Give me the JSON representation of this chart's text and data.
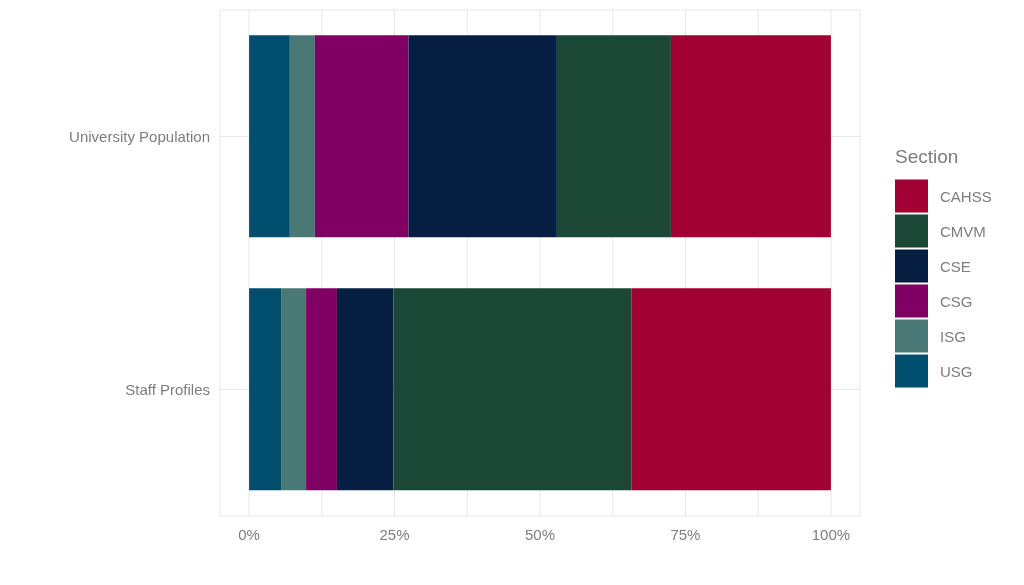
{
  "chart_data": {
    "type": "bar",
    "orientation": "horizontal",
    "stacked": true,
    "categories": [
      "University Population",
      "Staff Profiles"
    ],
    "series": [
      {
        "name": "USG",
        "color": "#004e6d",
        "values": [
          7.0,
          5.5
        ]
      },
      {
        "name": "ISG",
        "color": "#4a7876",
        "values": [
          4.3,
          4.3
        ]
      },
      {
        "name": "CSG",
        "color": "#7f0062",
        "values": [
          16.1,
          5.3
        ]
      },
      {
        "name": "CSE",
        "color": "#061e42",
        "values": [
          25.5,
          9.7
        ]
      },
      {
        "name": "CMVM",
        "color": "#1a4736",
        "values": [
          19.6,
          40.9
        ]
      },
      {
        "name": "CAHSS",
        "color": "#a10035",
        "values": [
          27.5,
          34.3
        ]
      }
    ],
    "xlim": [
      -5,
      105
    ],
    "xticks": [
      {
        "value": 0,
        "label": "0%"
      },
      {
        "value": 12.5,
        "label": null
      },
      {
        "value": 25,
        "label": "25%"
      },
      {
        "value": 37.5,
        "label": null
      },
      {
        "value": 50,
        "label": "50%"
      },
      {
        "value": 62.5,
        "label": null
      },
      {
        "value": 75,
        "label": "75%"
      },
      {
        "value": 87.5,
        "label": null
      },
      {
        "value": 100,
        "label": "100%"
      }
    ],
    "grid": true,
    "legend": "right",
    "legend_title": "Section"
  }
}
